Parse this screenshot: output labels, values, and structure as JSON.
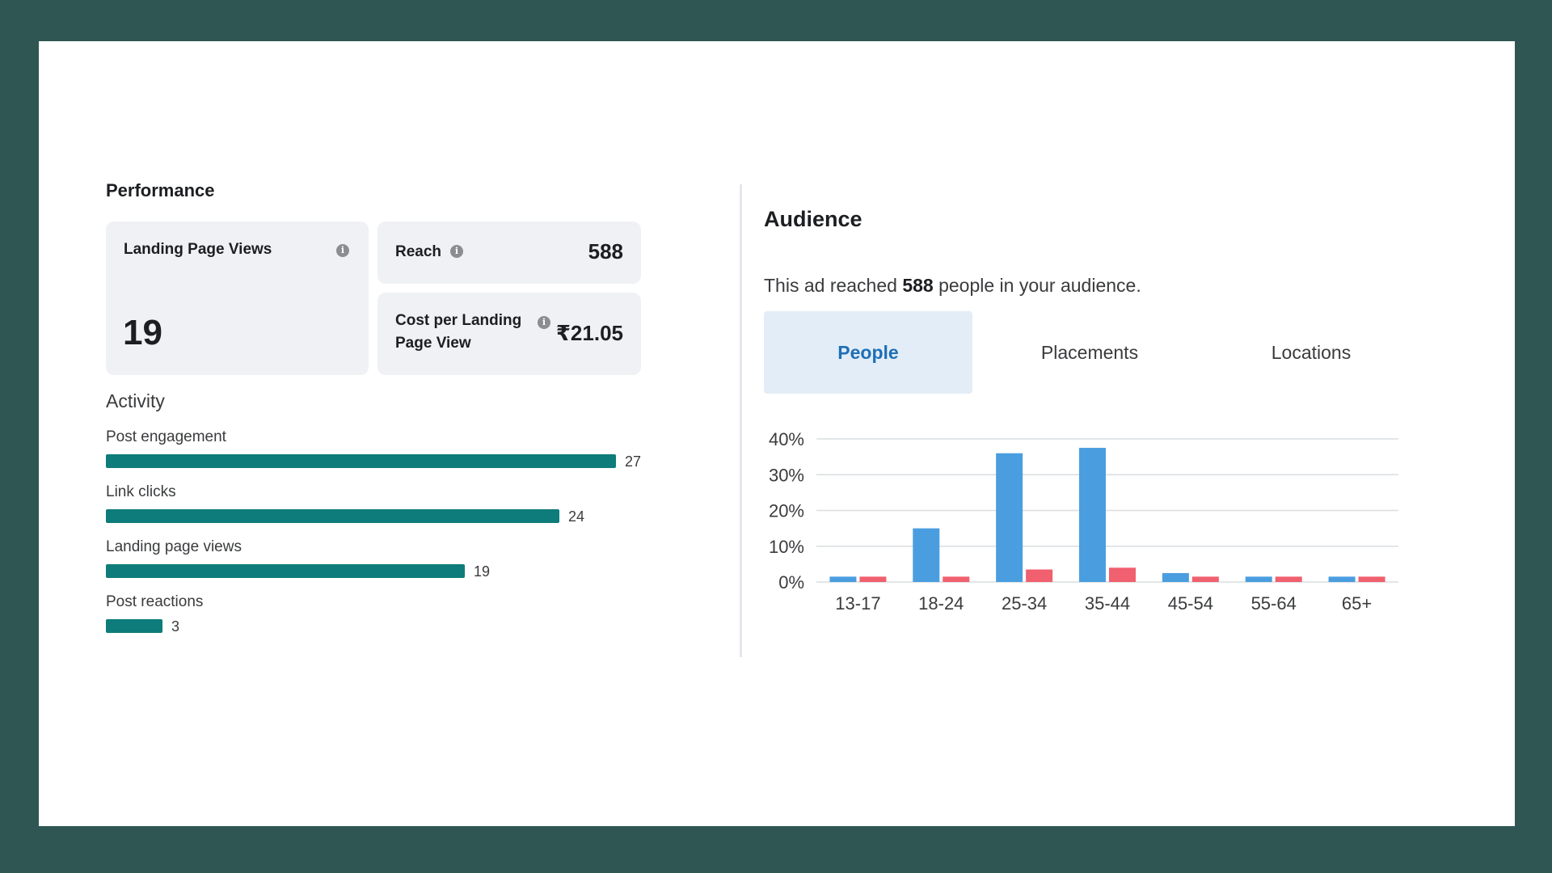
{
  "performance": {
    "title": "Performance",
    "landing_page_views": {
      "label": "Landing Page Views",
      "value": "19"
    },
    "reach": {
      "label": "Reach",
      "value": "588"
    },
    "cost_per_lpv": {
      "label_line1": "Cost per Landing",
      "label_line2": "Page View",
      "value": "₹21.05"
    },
    "info_glyph": "i"
  },
  "activity": {
    "title": "Activity",
    "max": 27,
    "items": [
      {
        "label": "Post engagement",
        "value": 27,
        "value_text": "27"
      },
      {
        "label": "Link clicks",
        "value": 24,
        "value_text": "24"
      },
      {
        "label": "Landing page views",
        "value": 19,
        "value_text": "19"
      },
      {
        "label": "Post reactions",
        "value": 3,
        "value_text": "3"
      }
    ],
    "bar_color": "#0d7c7a"
  },
  "audience": {
    "title": "Audience",
    "subtitle_pre": "This ad reached ",
    "subtitle_num": "588",
    "subtitle_post": " people in your audience.",
    "tabs": [
      {
        "label": "People",
        "active": true
      },
      {
        "label": "Placements",
        "active": false
      },
      {
        "label": "Locations",
        "active": false
      }
    ]
  },
  "chart_data": {
    "type": "bar",
    "categories": [
      "13-17",
      "18-24",
      "25-34",
      "35-44",
      "45-54",
      "55-64",
      "65+"
    ],
    "series": [
      {
        "values": [
          1.5,
          15,
          36,
          37.5,
          2.5,
          1.5,
          1.5
        ],
        "color": "#4a9ee0"
      },
      {
        "values": [
          1.5,
          1.5,
          3.5,
          4,
          1.5,
          1.5,
          1.5
        ],
        "color": "#f0606e"
      }
    ],
    "yticks": [
      "0%",
      "10%",
      "20%",
      "30%",
      "40%"
    ],
    "ylim": [
      0,
      40
    ],
    "grid": true
  }
}
